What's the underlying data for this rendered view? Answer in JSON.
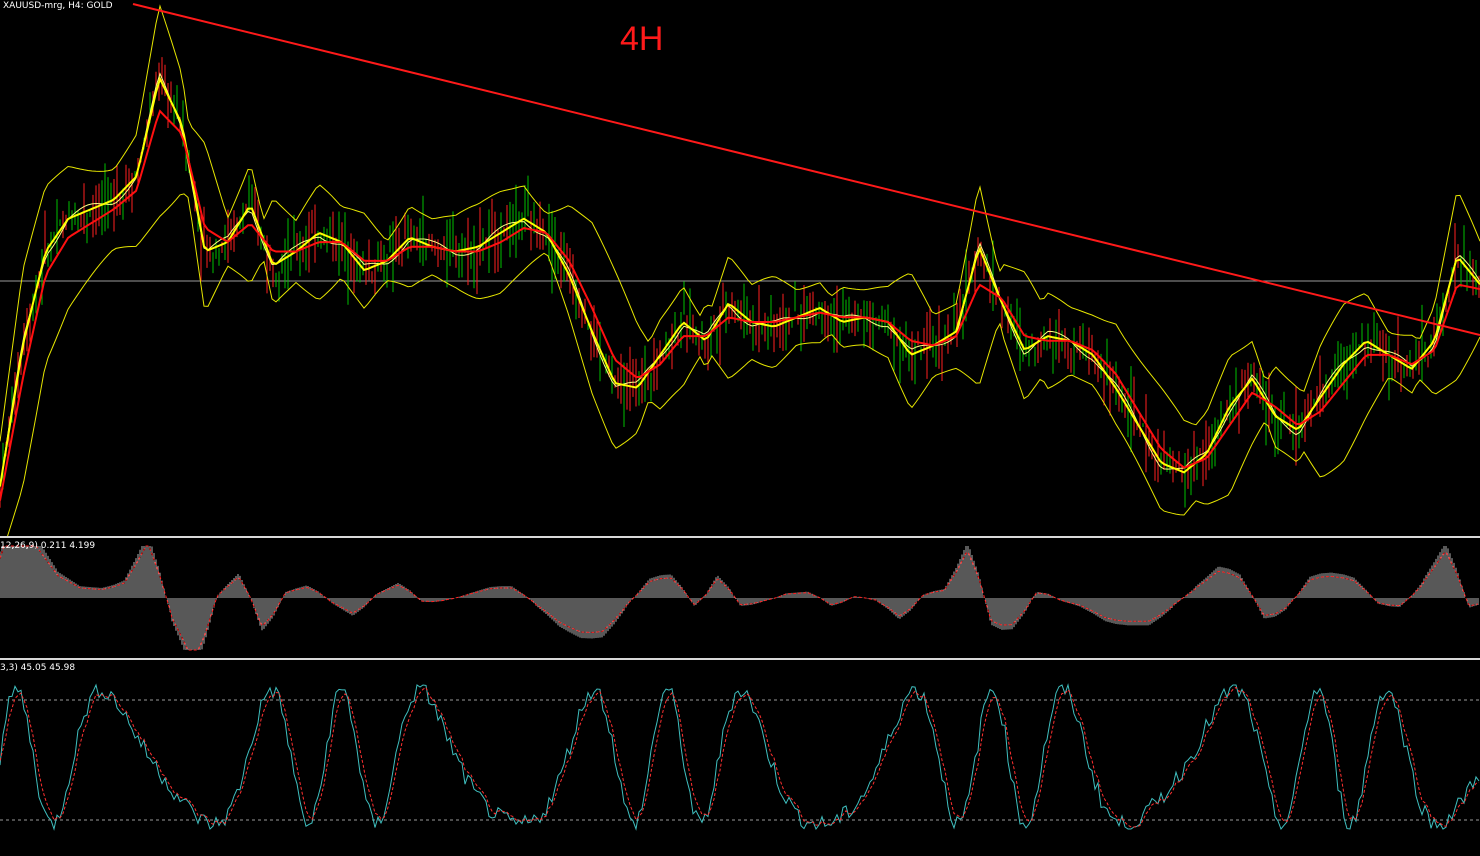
{
  "chart": {
    "symbol_label": "XAUUSD-mrg, H4:  GOLD",
    "timeframe_note": "4H",
    "macd_label": "12,26,9) 0.211 4.199",
    "stoch_label": "3,3) 45.05 45.98"
  },
  "colors": {
    "background": "#000000",
    "price_bars_up": "#00c000",
    "price_bars_down": "#ff2020",
    "fast_ma": "#ffff00",
    "slow_ma": "#ff1010",
    "bollinger_bands": "#e6e600",
    "trendline": "#ff1a1a",
    "macd_histogram": "#b0b0b0",
    "macd_signal": "#ff2020",
    "stoch_main": "#3fbfbf",
    "stoch_signal": "#ff3030",
    "grid_level": "#9a9a9a"
  },
  "chart_data": {
    "type": "line",
    "series": [
      {
        "values": [
          0.05,
          0.35,
          0.55,
          0.62,
          0.64,
          0.66,
          0.71,
          0.92,
          0.82,
          0.55,
          0.57,
          0.65,
          0.52,
          0.55,
          0.59,
          0.57,
          0.51,
          0.53,
          0.58,
          0.56,
          0.55,
          0.56,
          0.59,
          0.62,
          0.59,
          0.5,
          0.38,
          0.27,
          0.26,
          0.33,
          0.4,
          0.36,
          0.44,
          0.4,
          0.39,
          0.41,
          0.43,
          0.4,
          0.41,
          0.4,
          0.33,
          0.35,
          0.38,
          0.56,
          0.44,
          0.34,
          0.37,
          0.36,
          0.33,
          0.26,
          0.18,
          0.1,
          0.08,
          0.12,
          0.22,
          0.28,
          0.2,
          0.17,
          0.24,
          0.31,
          0.36,
          0.33,
          0.3,
          0.36,
          0.54,
          0.48
        ]
      },
      {
        "values": [
          0.02,
          0.28,
          0.5,
          0.58,
          0.61,
          0.64,
          0.68,
          0.85,
          0.8,
          0.6,
          0.57,
          0.61,
          0.55,
          0.55,
          0.57,
          0.57,
          0.53,
          0.53,
          0.56,
          0.56,
          0.55,
          0.55,
          0.57,
          0.6,
          0.59,
          0.53,
          0.43,
          0.32,
          0.28,
          0.31,
          0.37,
          0.37,
          0.41,
          0.4,
          0.4,
          0.41,
          0.42,
          0.41,
          0.41,
          0.4,
          0.36,
          0.35,
          0.37,
          0.48,
          0.45,
          0.37,
          0.36,
          0.36,
          0.34,
          0.29,
          0.21,
          0.13,
          0.09,
          0.11,
          0.18,
          0.25,
          0.22,
          0.18,
          0.21,
          0.27,
          0.33,
          0.33,
          0.31,
          0.34,
          0.48,
          0.47
        ]
      }
    ]
  }
}
